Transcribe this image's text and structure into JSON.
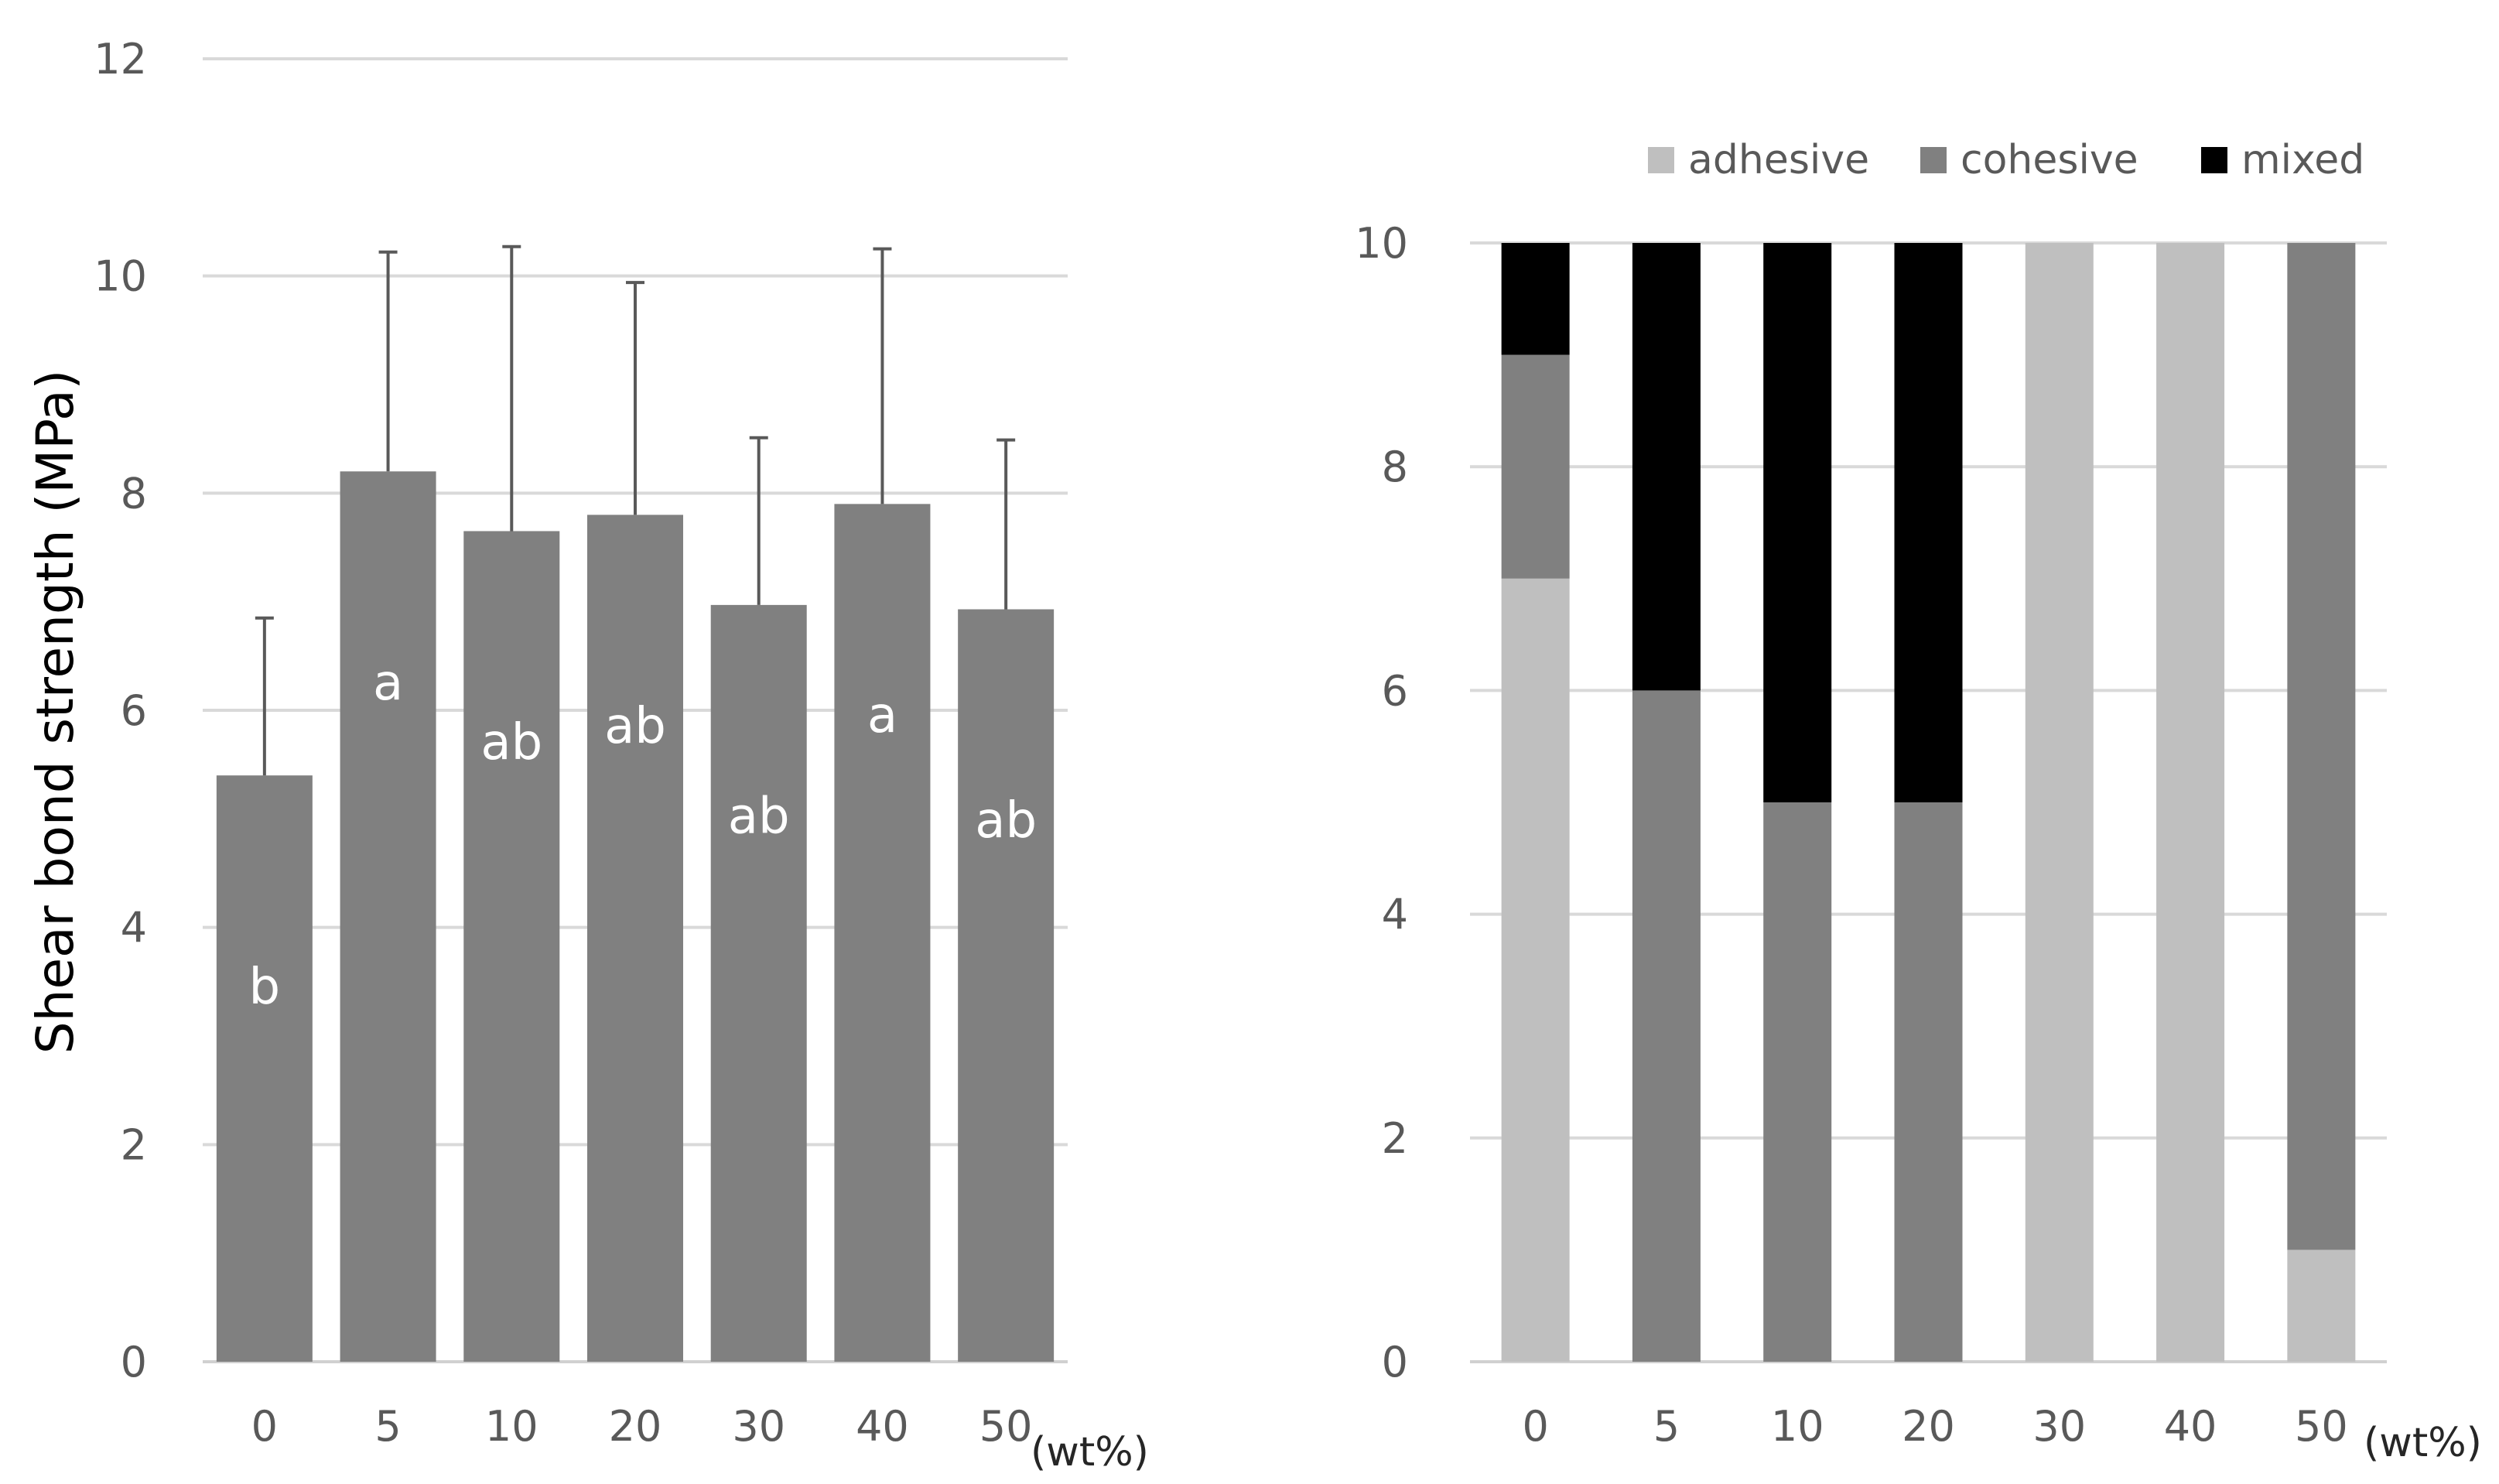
{
  "chart_data": [
    {
      "type": "bar",
      "title": "",
      "xlabel": "",
      "unit_label": "(wt%)",
      "ylabel": "Shear bond strength (MPa)",
      "ylim": [
        0,
        12
      ],
      "yticks": [
        0,
        2,
        4,
        6,
        8,
        10,
        12
      ],
      "grid": true,
      "categories": [
        "0",
        "5",
        "10",
        "20",
        "30",
        "40",
        "50"
      ],
      "values": [
        5.4,
        8.2,
        7.65,
        7.8,
        6.97,
        7.9,
        6.93
      ],
      "error_upper": [
        1.45,
        2.02,
        2.62,
        2.14,
        1.54,
        2.35,
        1.56
      ],
      "significance_letters": [
        "b",
        "a",
        "ab",
        "ab",
        "ab",
        "a",
        "ab"
      ],
      "bar_color": "#808080",
      "error_color": "#595959"
    },
    {
      "type": "bar",
      "stacked": true,
      "title": "",
      "xlabel": "",
      "unit_label": "(wt%)",
      "ylabel": "",
      "ylim": [
        0,
        10
      ],
      "yticks": [
        0,
        2,
        4,
        6,
        8,
        10
      ],
      "grid": true,
      "legend_position": "top",
      "categories": [
        "0",
        "5",
        "10",
        "20",
        "30",
        "40",
        "50"
      ],
      "series": [
        {
          "name": "adhesive",
          "color": "#bfbfbf",
          "values": [
            7,
            0,
            0,
            0,
            10,
            10,
            1
          ]
        },
        {
          "name": "cohesive",
          "color": "#808080",
          "values": [
            2,
            6,
            5,
            5,
            0,
            0,
            9
          ]
        },
        {
          "name": "mixed",
          "color": "#000000",
          "values": [
            1,
            4,
            5,
            5,
            0,
            0,
            0
          ]
        }
      ]
    }
  ]
}
